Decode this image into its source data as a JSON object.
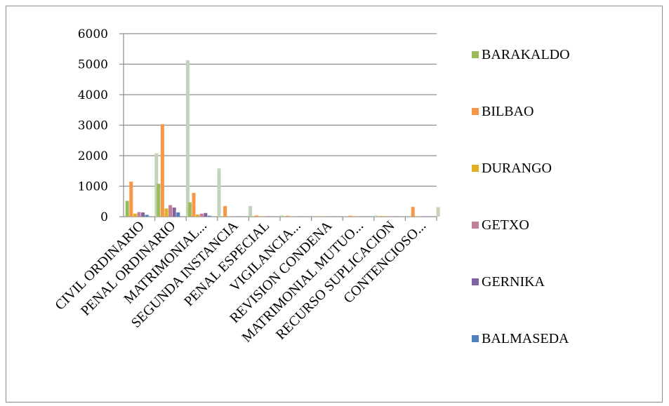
{
  "chart_data": {
    "type": "bar",
    "title": "",
    "xlabel": "",
    "ylabel": "",
    "ylim": [
      0,
      6000
    ],
    "yticks": [
      0,
      1000,
      2000,
      3000,
      4000,
      5000,
      6000
    ],
    "grid": true,
    "legend_position": "right",
    "categories": [
      "CIVIL ORDINARIO",
      "PENAL ORDINARIO",
      "MATRIMONIAL...",
      "SEGUNDA INSTANCIA",
      "PENAL ESPECIAL",
      "VIGILANCIA...",
      "REVISION CONDENA",
      "MATRIMONIAL MUTUO...",
      "RECURSO SUPLICACION",
      "CONTENCIOSO..."
    ],
    "series": [
      {
        "name": "BARAKALDO",
        "color": "#9bbb59",
        "values": [
          520,
          1080,
          470,
          10,
          10,
          10,
          5,
          10,
          5,
          10
        ]
      },
      {
        "name": "BILBAO",
        "color": "#f79646",
        "values": [
          1150,
          3030,
          780,
          350,
          40,
          30,
          10,
          30,
          20,
          320
        ]
      },
      {
        "name": "DURANGO",
        "color": "#e0b020",
        "values": [
          100,
          270,
          70,
          10,
          15,
          10,
          5,
          10,
          5,
          10
        ]
      },
      {
        "name": "GETXO",
        "color": "#c0809b",
        "values": [
          150,
          380,
          100,
          10,
          10,
          10,
          5,
          10,
          5,
          10
        ]
      },
      {
        "name": "GERNIKA",
        "color": "#8064a2",
        "values": [
          140,
          300,
          120,
          10,
          10,
          10,
          5,
          10,
          5,
          10
        ]
      },
      {
        "name": "BALMASEDA",
        "color": "#4f81bd",
        "values": [
          60,
          140,
          30,
          5,
          5,
          5,
          5,
          5,
          5,
          5
        ]
      },
      {
        "name": "",
        "color": "#c3d2b8",
        "values": [
          2080,
          5130,
          1580,
          350,
          40,
          30,
          20,
          40,
          30,
          310
        ]
      }
    ]
  }
}
